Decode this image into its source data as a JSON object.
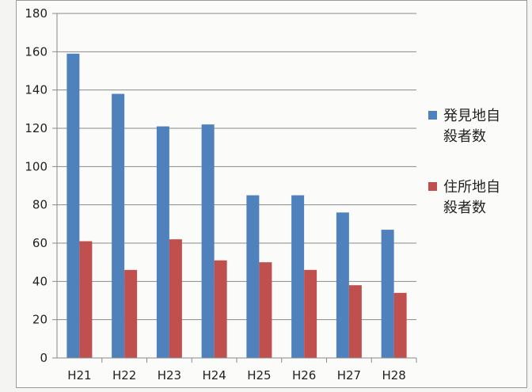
{
  "chart_data": {
    "type": "bar",
    "categories": [
      "H21",
      "H22",
      "H23",
      "H24",
      "H25",
      "H26",
      "H27",
      "H28"
    ],
    "series": [
      {
        "name": "発見地自殺者数",
        "legend_lines": [
          "発見地自",
          "殺者数"
        ],
        "color": "#4f81bd",
        "values": [
          159,
          138,
          121,
          122,
          85,
          85,
          76,
          67
        ]
      },
      {
        "name": "住所地自殺者数",
        "legend_lines": [
          "住所地自",
          "殺者数"
        ],
        "color": "#c0504d",
        "values": [
          61,
          46,
          62,
          51,
          50,
          46,
          38,
          34
        ]
      }
    ],
    "ylim": [
      0,
      180
    ],
    "yticks": [
      0,
      20,
      40,
      60,
      80,
      100,
      120,
      140,
      160,
      180
    ],
    "grid": true,
    "legend_position": "right"
  }
}
